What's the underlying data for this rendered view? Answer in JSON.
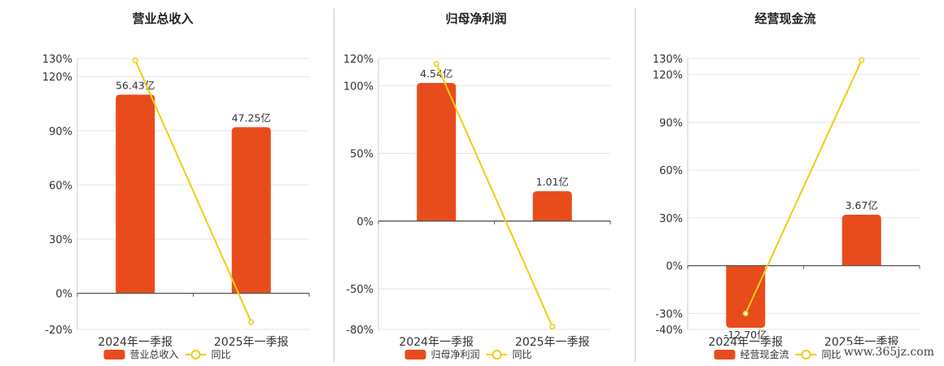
{
  "colors": {
    "bar": "#E84C1C",
    "line": "#F2CC0F",
    "grid": "#e6e6e6",
    "axis": "#555555",
    "text": "#333333"
  },
  "watermark": "www.365jz.com",
  "chart_data": [
    {
      "type": "bar",
      "title": "营业总收入",
      "categories": [
        "2024年一季报",
        "2025年一季报"
      ],
      "ylim": [
        -20,
        130
      ],
      "yticks": [
        130,
        120,
        90,
        60,
        30,
        0,
        -20
      ],
      "series": [
        {
          "name": "营业总收入",
          "type": "bar",
          "values": [
            110,
            92
          ],
          "labels": [
            "56.43亿",
            "47.25亿"
          ]
        },
        {
          "name": "同比",
          "type": "line",
          "values": [
            129,
            -16
          ]
        }
      ]
    },
    {
      "type": "bar",
      "title": "归母净利润",
      "categories": [
        "2024年一季报",
        "2025年一季报"
      ],
      "ylim": [
        -80,
        120
      ],
      "yticks": [
        120,
        100,
        50,
        0,
        -50,
        -80
      ],
      "series": [
        {
          "name": "归母净利润",
          "type": "bar",
          "values": [
            102,
            22
          ],
          "labels": [
            "4.54亿",
            "1.01亿"
          ]
        },
        {
          "name": "同比",
          "type": "line",
          "values": [
            116,
            -78
          ]
        }
      ]
    },
    {
      "type": "bar",
      "title": "经营现金流",
      "categories": [
        "2024年一季报",
        "2025年一季报"
      ],
      "ylim": [
        -40,
        130
      ],
      "yticks": [
        130,
        120,
        90,
        60,
        30,
        0,
        -30,
        -40
      ],
      "series": [
        {
          "name": "经营现金流",
          "type": "bar",
          "values": [
            -39,
            32
          ],
          "labels": [
            "-12.70亿",
            "3.67亿"
          ]
        },
        {
          "name": "同比",
          "type": "line",
          "values": [
            -30,
            129
          ]
        }
      ]
    }
  ]
}
